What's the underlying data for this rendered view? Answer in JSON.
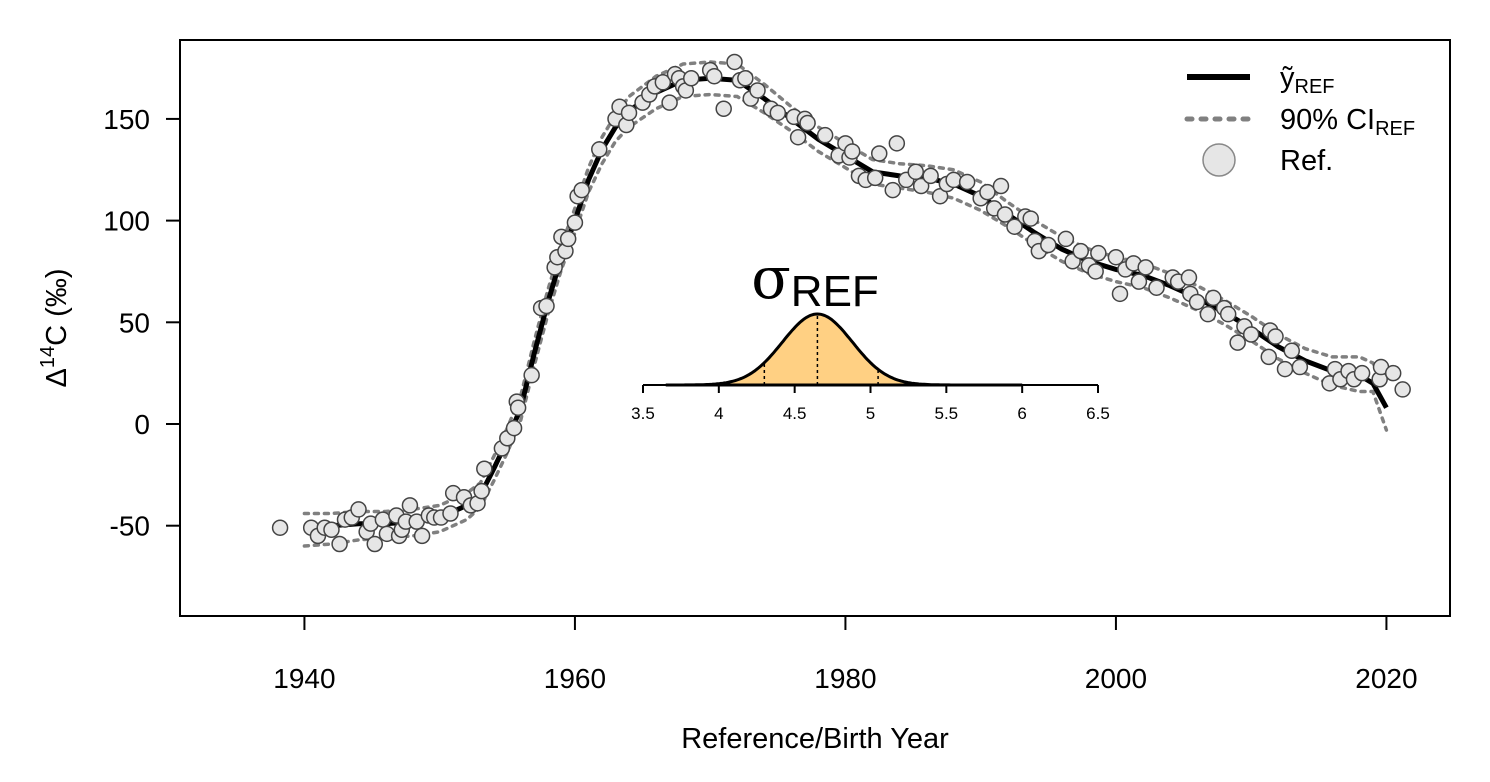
{
  "chart_data": {
    "type": "line",
    "xlabel": "Reference/Birth Year",
    "ylabel": {
      "pre": "Δ",
      "sup": "14",
      "post": "C (‰)"
    },
    "xlim": [
      1930.8,
      2024.7
    ],
    "ylim": [
      -94.4,
      188.8
    ],
    "xticks": [
      1940,
      1960,
      1980,
      2000,
      2020
    ],
    "yticks": [
      -50,
      0,
      50,
      100,
      150
    ],
    "legend_position": "top-right",
    "x": [
      1940,
      1942,
      1944,
      1946,
      1948,
      1950,
      1952,
      1953,
      1954,
      1955,
      1956,
      1957,
      1958,
      1959,
      1960,
      1961,
      1962,
      1963,
      1964,
      1966,
      1968,
      1970,
      1972,
      1974,
      1976,
      1978,
      1980,
      1982,
      1984,
      1986,
      1988,
      1990,
      1992,
      1994,
      1996,
      1998,
      2000,
      2002,
      2004,
      2006,
      2008,
      2010,
      2012,
      2014,
      2016,
      2018,
      2019,
      2020
    ],
    "series": [
      {
        "name": "ỹ",
        "subscript": "REF",
        "color": "#000000",
        "values": [
          -50,
          -50,
          -49,
          -49,
          -48,
          -46,
          -40,
          -35,
          -22,
          -8,
          8,
          35,
          60,
          82,
          100,
          120,
          135,
          146,
          154,
          163,
          169,
          170,
          169,
          160,
          150,
          140,
          132,
          124,
          122,
          121,
          118,
          112,
          103,
          94,
          86,
          80,
          76,
          73,
          68,
          62,
          55,
          47,
          38,
          31,
          26,
          24,
          20,
          8
        ]
      }
    ],
    "ci": {
      "name": "90% CI",
      "subscript": "REF",
      "color": "#808080",
      "upper": [
        -44,
        -44,
        -43,
        -43,
        -42,
        -40,
        -34,
        -29,
        -16,
        -2,
        14,
        41,
        66,
        88,
        106,
        126,
        141,
        152,
        161,
        171,
        177,
        178,
        177,
        167,
        156,
        146,
        138,
        130,
        128,
        127,
        125,
        119,
        109,
        100,
        92,
        86,
        82,
        79,
        74,
        68,
        61,
        53,
        44,
        37,
        33,
        33,
        30,
        20
      ],
      "lower": [
        -60,
        -59,
        -57,
        -56,
        -55,
        -53,
        -47,
        -41,
        -28,
        -14,
        2,
        29,
        54,
        76,
        94,
        114,
        128,
        139,
        146,
        155,
        161,
        162,
        161,
        153,
        144,
        134,
        126,
        118,
        116,
        114,
        111,
        105,
        97,
        88,
        80,
        74,
        70,
        67,
        62,
        56,
        49,
        41,
        32,
        25,
        19,
        16,
        16,
        -3
      ]
    },
    "points": {
      "name": "Ref.",
      "color": "#e6e6e6",
      "x": [
        1938.2,
        1940.5,
        1941,
        1941.5,
        1942,
        1942.6,
        1943,
        1943.5,
        1944,
        1944.6,
        1944.9,
        1945.2,
        1945.8,
        1946.1,
        1946.8,
        1947,
        1947.2,
        1947.5,
        1947.8,
        1948.3,
        1948.7,
        1949.2,
        1949.6,
        1950.1,
        1950.8,
        1951,
        1951.8,
        1952.3,
        1952.8,
        1953.1,
        1953.3,
        1954.6,
        1955,
        1955.5,
        1955.7,
        1955.8,
        1956.8,
        1957.5,
        1957.9,
        1958.5,
        1958.7,
        1959,
        1959.3,
        1959.5,
        1960,
        1960.2,
        1960.5,
        1961.8,
        1963,
        1963.3,
        1963.8,
        1964,
        1965,
        1965.5,
        1965.9,
        1966.5,
        1967,
        1967.4,
        1967.7,
        1968,
        1968.2,
        1968.6,
        1970,
        1970.3,
        1971,
        1971.8,
        1972.2,
        1972.6,
        1973,
        1973.5,
        1974.5,
        1975,
        1976.2,
        1976.5,
        1977,
        1977.2,
        1978.5,
        1979.5,
        1980,
        1980.3,
        1980.5,
        1981,
        1981.5,
        1982.2,
        1982.5,
        1983.5,
        1983.8,
        1984.5,
        1985.2,
        1985.6,
        1986.3,
        1987,
        1987.5,
        1988,
        1989,
        1990,
        1990.5,
        1991,
        1991.5,
        1991.8,
        1992.5,
        1993.3,
        1993.7,
        1994,
        1994.3,
        1995,
        1996.3,
        1996.8,
        1997.4,
        1998,
        1998.5,
        1998.7,
        2000,
        2000.3,
        2000.7,
        2001.3,
        2001.7,
        2002.2,
        2003,
        2004.2,
        2004.6,
        2005.4,
        2005.5,
        2006,
        2006.8,
        2007.2,
        2008,
        2008.3,
        2009,
        2009.5,
        2010,
        2011.3,
        2011.4,
        2011.8,
        2012.5,
        2013,
        2013.6,
        2015.8,
        2016.2,
        2016.6,
        2017.2,
        2017.6,
        2018.2,
        2019.5,
        2019.6,
        2020.5,
        2021.2
      ],
      "y": [
        -51,
        -51,
        -55,
        -51,
        -52,
        -59,
        -47,
        -46,
        -42,
        -53,
        -49,
        -59,
        -47,
        -54,
        -45,
        -55,
        -52,
        -48,
        -40,
        -48,
        -55,
        -45,
        -46,
        -46,
        -44,
        -34,
        -36,
        -40,
        -39,
        -33,
        -22,
        -12,
        -7,
        -2,
        11,
        8,
        24,
        57,
        58,
        77,
        82,
        92,
        85,
        91,
        99,
        112,
        115,
        135,
        150,
        156,
        147,
        153,
        158,
        162,
        166,
        168,
        158,
        172,
        170,
        166,
        164,
        170,
        174,
        171,
        155,
        178,
        169,
        170,
        160,
        164,
        155,
        153,
        151,
        141,
        150,
        148,
        142,
        132,
        138,
        131,
        134,
        122,
        120,
        121,
        133,
        115,
        138,
        120,
        124,
        117,
        122,
        112,
        118,
        120,
        119,
        111,
        114,
        106,
        117,
        103,
        97,
        102,
        101,
        90,
        85,
        88,
        91,
        80,
        85,
        78,
        75,
        84,
        82,
        64,
        76,
        79,
        70,
        77,
        67,
        72,
        70,
        72,
        64,
        60,
        54,
        62,
        57,
        54,
        40,
        48,
        44,
        33,
        46,
        43,
        27,
        36,
        28,
        20,
        27,
        22,
        26,
        22,
        25,
        22,
        28,
        25,
        17
      ]
    },
    "inset": {
      "type": "density",
      "title": "σ",
      "subscript": "REF",
      "color": "#ffd083",
      "xlim": [
        3.5,
        6.5
      ],
      "xticks": [
        3.5,
        4,
        4.5,
        5,
        5.5,
        6,
        6.5
      ],
      "range": [
        3.65,
        6.0
      ],
      "mean": 4.65,
      "sd": 0.23,
      "quantiles": [
        4.3,
        4.65,
        5.05
      ]
    }
  }
}
